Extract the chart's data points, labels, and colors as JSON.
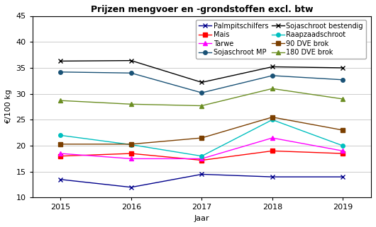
{
  "title": "Prijzen mengvoer en -grondstoffen excl. btw",
  "xlabel": "Jaar",
  "ylabel": "€/100 kg",
  "years": [
    2015,
    2016,
    2017,
    2018,
    2019
  ],
  "series": [
    {
      "label": "Palmpitschilfers",
      "color": "#00008B",
      "marker": "x",
      "markersize": 5,
      "values": [
        13.5,
        12.0,
        14.5,
        14.0,
        14.0
      ]
    },
    {
      "label": "Mais",
      "color": "#FF0000",
      "marker": "s",
      "markersize": 4,
      "values": [
        18.0,
        18.5,
        17.2,
        19.0,
        18.5
      ]
    },
    {
      "label": "Tarwe",
      "color": "#FF00FF",
      "marker": "^",
      "markersize": 5,
      "values": [
        18.5,
        17.5,
        17.5,
        21.5,
        19.0
      ]
    },
    {
      "label": "Sojaschroot MP",
      "color": "#1a5276",
      "marker": "o",
      "markersize": 4,
      "values": [
        34.2,
        34.0,
        30.2,
        33.5,
        32.7
      ]
    },
    {
      "label": "Sojaschroot bestendig",
      "color": "#000000",
      "marker": "x",
      "markersize": 5,
      "values": [
        36.3,
        36.4,
        32.2,
        35.2,
        35.0
      ]
    },
    {
      "label": "Raapzaadschroot",
      "color": "#00BFBF",
      "marker": "o",
      "markersize": 4,
      "values": [
        22.0,
        20.2,
        18.0,
        25.0,
        20.0
      ]
    },
    {
      "label": "90 DVE brok",
      "color": "#7B3F00",
      "marker": "s",
      "markersize": 4,
      "values": [
        20.3,
        20.3,
        21.5,
        25.5,
        23.0
      ]
    },
    {
      "label": "180 DVE brok",
      "color": "#6B8E23",
      "marker": "^",
      "markersize": 5,
      "values": [
        28.7,
        28.0,
        27.7,
        31.0,
        29.0
      ]
    }
  ],
  "legend_order": [
    0,
    1,
    2,
    3,
    4,
    5,
    6,
    7
  ],
  "ylim": [
    10,
    45
  ],
  "yticks": [
    10,
    15,
    20,
    25,
    30,
    35,
    40,
    45
  ],
  "grid_color": "#cccccc",
  "bg_color": "#ffffff",
  "legend_ncol": 2,
  "legend_fontsize": 7,
  "title_fontsize": 9,
  "axis_fontsize": 8,
  "tick_fontsize": 8
}
